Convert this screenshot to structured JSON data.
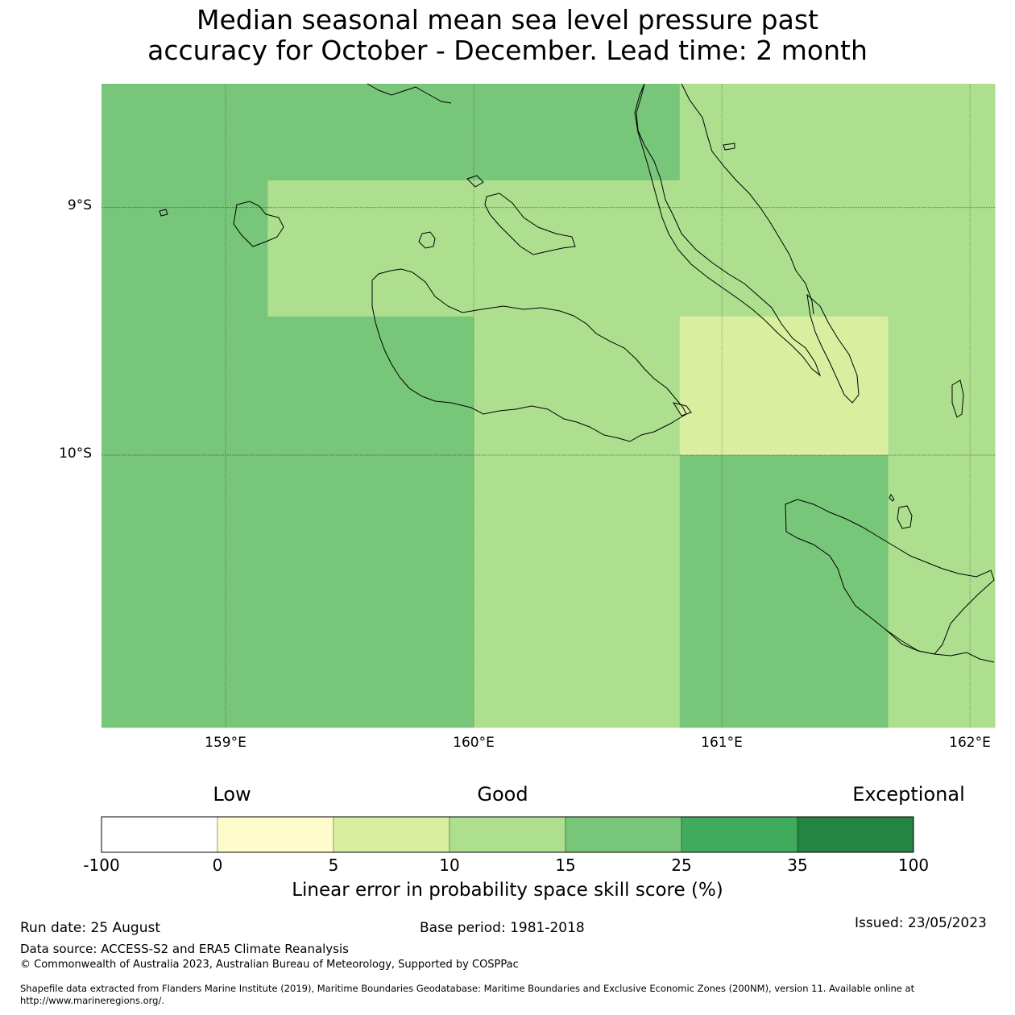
{
  "title": {
    "line1": "Median seasonal mean sea level pressure past",
    "line2": "accuracy for October - December. Lead time: 2 month"
  },
  "map": {
    "lon_range": [
      158.5,
      162.1
    ],
    "lat_range": [
      -8.5,
      -11.1
    ],
    "x_ticks": [
      "159°E",
      "160°E",
      "161°E",
      "162°E"
    ],
    "y_ticks": [
      "9°S",
      "10°S"
    ],
    "grid": true,
    "cells": [
      {
        "lon": [
          158.5,
          159.17
        ],
        "lat": [
          -8.5,
          -8.89
        ],
        "color": "#78c67a"
      },
      {
        "lon": [
          159.17,
          160.83
        ],
        "lat": [
          -8.5,
          -8.89
        ],
        "color": "#78c67a"
      },
      {
        "lon": [
          160.83,
          162.1
        ],
        "lat": [
          -8.5,
          -8.89
        ],
        "color": "#addf8e"
      },
      {
        "lon": [
          158.5,
          159.17
        ],
        "lat": [
          -8.89,
          -10.0
        ],
        "color": "#78c67a"
      },
      {
        "lon": [
          159.17,
          160.0
        ],
        "lat": [
          -8.89,
          -9.44
        ],
        "color": "#addf8e"
      },
      {
        "lon": [
          160.0,
          160.83
        ],
        "lat": [
          -8.89,
          -9.44
        ],
        "color": "#addf8e"
      },
      {
        "lon": [
          160.83,
          162.1
        ],
        "lat": [
          -8.89,
          -9.44
        ],
        "color": "#addf8e"
      },
      {
        "lon": [
          159.17,
          160.0
        ],
        "lat": [
          -9.44,
          -10.0
        ],
        "color": "#78c67a"
      },
      {
        "lon": [
          160.0,
          160.83
        ],
        "lat": [
          -9.44,
          -10.0
        ],
        "color": "#addf8e"
      },
      {
        "lon": [
          160.83,
          161.67
        ],
        "lat": [
          -9.44,
          -10.0
        ],
        "color": "#d9ef9f"
      },
      {
        "lon": [
          161.67,
          162.1
        ],
        "lat": [
          -9.44,
          -10.0
        ],
        "color": "#addf8e"
      },
      {
        "lon": [
          158.5,
          160.0
        ],
        "lat": [
          -10.0,
          -11.1
        ],
        "color": "#78c67a"
      },
      {
        "lon": [
          160.0,
          160.83
        ],
        "lat": [
          -10.0,
          -11.1
        ],
        "color": "#addf8e"
      },
      {
        "lon": [
          160.83,
          161.67
        ],
        "lat": [
          -10.0,
          -11.1
        ],
        "color": "#78c67a"
      },
      {
        "lon": [
          161.67,
          162.1
        ],
        "lat": [
          -10.0,
          -11.1
        ],
        "color": "#addf8e"
      }
    ]
  },
  "legend": {
    "words": [
      "Low",
      "Good",
      "Exceptional"
    ],
    "ticks": [
      "-100",
      "0",
      "5",
      "10",
      "15",
      "25",
      "35",
      "100"
    ],
    "colors": [
      "#ffffff",
      "#fffccc",
      "#d9ef9f",
      "#addf8e",
      "#78c67a",
      "#41ab5d",
      "#238443"
    ],
    "label": "Linear error in probability space skill score (%)"
  },
  "footer": {
    "run_date": "Run date: 25 August",
    "base_period": "Base period: 1981-2018",
    "issued": "Issued: 23/05/2023",
    "data_source": "Data source: ACCESS-S2 and ERA5 Climate Reanalysis",
    "copyright": "© Commonwealth of Australia 2023, Australian Bureau of Meteorology, Supported by COSPPac",
    "shapefile_line1": "Shapefile data extracted from Flanders Marine Institute (2019), Maritime Boundaries Geodatabase: Maritime Boundaries and Exclusive Economic Zones (200NM), version 11. Available online at",
    "shapefile_line2": "http://www.marineregions.org/."
  }
}
